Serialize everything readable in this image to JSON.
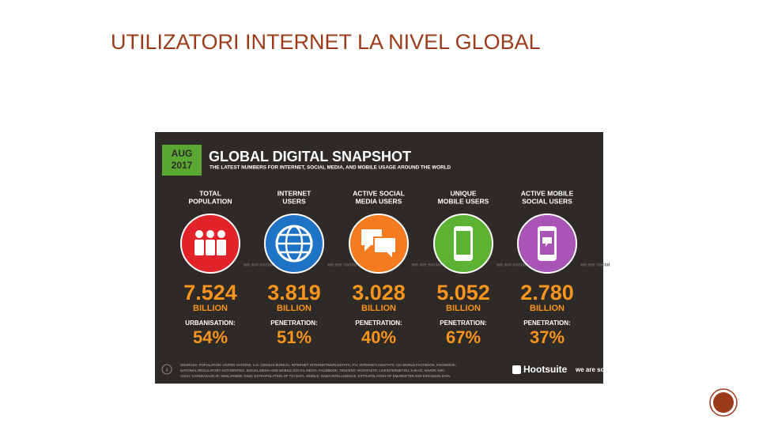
{
  "slide": {
    "title": "UTILIZATORI INTERNET LA NIVEL GLOBAL"
  },
  "infographic": {
    "badge": {
      "month": "AUG",
      "year": "2017"
    },
    "heading": "GLOBAL DIGITAL SNAPSHOT",
    "subheading": "THE LATEST NUMBERS FOR INTERNET, SOCIAL MEDIA, AND MOBILE USAGE AROUND THE WORLD",
    "watermark": "we are social",
    "stats": [
      {
        "label": [
          "TOTAL",
          "POPULATION"
        ],
        "value": "7.524",
        "unit": "BILLION",
        "sublabel": "URBANISATION:",
        "subvalue": "54%"
      },
      {
        "label": [
          "INTERNET",
          "USERS"
        ],
        "value": "3.819",
        "unit": "BILLION",
        "sublabel": "PENETRATION:",
        "subvalue": "51%"
      },
      {
        "label": [
          "ACTIVE SOCIAL",
          "MEDIA USERS"
        ],
        "value": "3.028",
        "unit": "BILLION",
        "sublabel": "PENETRATION:",
        "subvalue": "40%"
      },
      {
        "label": [
          "UNIQUE",
          "MOBILE USERS"
        ],
        "value": "5.052",
        "unit": "BILLION",
        "sublabel": "PENETRATION:",
        "subvalue": "67%"
      },
      {
        "label": [
          "ACTIVE MOBILE",
          "SOCIAL USERS"
        ],
        "value": "2.780",
        "unit": "BILLION",
        "sublabel": "PENETRATION:",
        "subvalue": "37%"
      }
    ],
    "footer": {
      "page": "4",
      "sources": [
        "SOURCES: POPULATION: UNITED NATIONS; U.S. CENSUS BUREAU. INTERNET: INTERNETWORLDSTATS; ITU; INTERNETLIVESTATS; CIA WORLD FACTBOOK; FACEBOOK;",
        "NATIONAL REGULATORY AUTHORITIES. SOCIAL MEDIA AND MOBILE SOCIAL MEDIA: FACEBOOK; TENCENT; VKONTAKTE; LIVEINTERNET.RU; KAKAO; NAVER; NIKI",
        "AGHA; CAFEBAZAAR.IR; SIMILARWEB; DING; EXTRAPOLATION OF TGI DATA. MOBILE: GSMA INTELLIGENCE; EXTRAPOLATION OF EMARKETER AND ERICSSON DATA."
      ],
      "brand": "Hootsuite",
      "partner": "we are social"
    }
  }
}
